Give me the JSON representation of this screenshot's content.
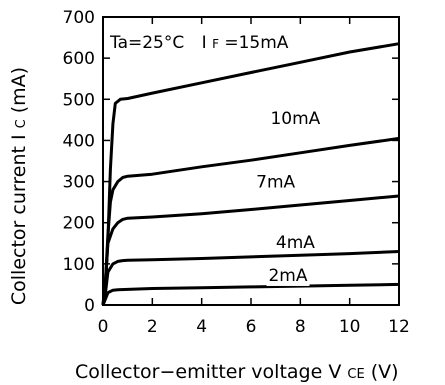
{
  "chart_data": {
    "type": "line",
    "xlabel": {
      "prefix": "Collector−emitter voltage V",
      "sub": "CE",
      "suffix": "(V)"
    },
    "ylabel": {
      "prefix": "Collector current I",
      "sub": "C",
      "suffix": "(mA)"
    },
    "xlim": [
      0,
      12
    ],
    "ylim": [
      0,
      700
    ],
    "x_ticks": [
      0,
      2,
      4,
      6,
      8,
      10,
      12
    ],
    "y_ticks": [
      0,
      100,
      200,
      300,
      400,
      500,
      600,
      700
    ],
    "grid": false,
    "annotation": {
      "condition": "Ta=25°C",
      "param_prefix": "I",
      "param_sub": "F",
      "param_suffix": "=15mA"
    },
    "series": [
      {
        "name": "15mA",
        "x": [
          0,
          0.1,
          0.2,
          0.3,
          0.4,
          0.5,
          0.7,
          1.0,
          2,
          4,
          6,
          8,
          10,
          12
        ],
        "y": [
          0,
          40,
          160,
          330,
          440,
          490,
          500,
          502,
          515,
          540,
          565,
          590,
          615,
          635
        ]
      },
      {
        "name": "10mA",
        "x": [
          0,
          0.1,
          0.2,
          0.3,
          0.4,
          0.6,
          0.8,
          1.0,
          2,
          4,
          6,
          8,
          10,
          12
        ],
        "y": [
          0,
          60,
          170,
          250,
          280,
          300,
          310,
          313,
          318,
          336,
          352,
          370,
          388,
          405
        ]
      },
      {
        "name": "7mA",
        "x": [
          0,
          0.1,
          0.2,
          0.4,
          0.6,
          0.8,
          1.0,
          2,
          4,
          6,
          8,
          10,
          12
        ],
        "y": [
          0,
          60,
          150,
          185,
          200,
          208,
          211,
          214,
          222,
          232,
          243,
          254,
          265
        ]
      },
      {
        "name": "4mA",
        "x": [
          0,
          0.1,
          0.2,
          0.4,
          0.6,
          0.8,
          1.0,
          2,
          4,
          6,
          8,
          10,
          12
        ],
        "y": [
          0,
          30,
          80,
          100,
          106,
          108,
          109,
          110,
          113,
          117,
          121,
          125,
          130
        ]
      },
      {
        "name": "2mA",
        "x": [
          0,
          0.1,
          0.2,
          0.4,
          0.6,
          1.0,
          2,
          4,
          6,
          8,
          10,
          12
        ],
        "y": [
          0,
          15,
          30,
          36,
          37,
          38,
          40,
          42,
          44,
          46,
          48,
          50
        ]
      }
    ]
  }
}
